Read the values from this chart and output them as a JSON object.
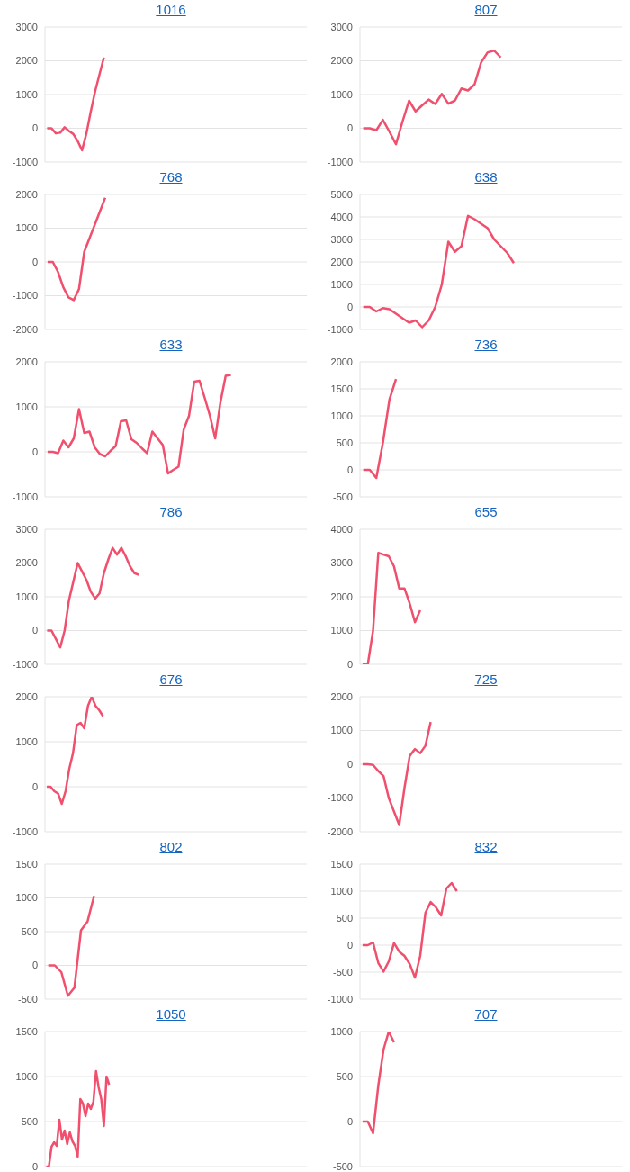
{
  "chart_data": [
    {
      "type": "line",
      "title": "1016",
      "color": "#f0506e",
      "marker": "none",
      "line_style": "solid",
      "grid": "y",
      "tick_labels": "y",
      "ylim": [
        -1000,
        3000
      ],
      "yticks": [
        -1000,
        0,
        1000,
        2000,
        3000
      ],
      "categories": [
        null,
        null,
        null,
        null,
        null,
        null,
        null,
        null,
        null,
        null,
        null,
        null,
        null,
        null,
        null,
        null,
        null,
        null,
        null,
        null,
        null,
        null,
        null,
        null,
        null,
        null,
        null,
        null,
        null,
        null,
        null,
        null,
        null,
        null,
        null,
        null,
        null,
        null,
        null,
        null,
        null,
        null,
        null,
        null,
        null,
        null,
        null,
        null,
        null,
        null,
        null,
        null,
        null,
        null,
        null,
        null,
        null,
        null,
        null,
        null
      ],
      "values": [
        0,
        0,
        -150,
        -130,
        30,
        -80,
        -170,
        -380,
        -650,
        -150,
        500,
        1100,
        1600,
        2100,
        null,
        null,
        null,
        null,
        null,
        null,
        null,
        null,
        null,
        null,
        null,
        null,
        null,
        null,
        null,
        null,
        null,
        null,
        null,
        null,
        null,
        null,
        null,
        null,
        null,
        null,
        null,
        null,
        null,
        null,
        null,
        null,
        null,
        null,
        null,
        null,
        null,
        null,
        null,
        null,
        null,
        null,
        null,
        null,
        null,
        null
      ]
    },
    {
      "type": "line",
      "title": "807",
      "color": "#f0506e",
      "marker": "none",
      "line_style": "solid",
      "grid": "y",
      "tick_labels": "y",
      "ylim": [
        -1000,
        3000
      ],
      "yticks": [
        -1000,
        0,
        1000,
        2000,
        3000
      ],
      "categories": [
        null,
        null,
        null,
        null,
        null,
        null,
        null,
        null,
        null,
        null,
        null,
        null,
        null,
        null,
        null,
        null,
        null,
        null,
        null,
        null,
        null,
        null,
        null,
        null,
        null,
        null,
        null,
        null,
        null,
        null,
        null,
        null,
        null,
        null,
        null,
        null,
        null,
        null,
        null,
        null
      ],
      "values": [
        0,
        0,
        -60,
        250,
        -100,
        -470,
        200,
        820,
        500,
        680,
        850,
        720,
        1020,
        730,
        820,
        1180,
        1120,
        1300,
        1950,
        2250,
        2300,
        2100,
        null,
        null,
        null,
        null,
        null,
        null,
        null,
        null,
        null,
        null,
        null,
        null,
        null,
        null,
        null,
        null,
        null,
        null
      ]
    },
    {
      "type": "line",
      "title": "768",
      "color": "#f0506e",
      "marker": "none",
      "line_style": "solid",
      "grid": "y",
      "tick_labels": "y",
      "ylim": [
        -2000,
        2000
      ],
      "yticks": [
        -2000,
        -1000,
        0,
        1000,
        2000
      ],
      "categories": [
        null,
        null,
        null,
        null,
        null,
        null,
        null,
        null,
        null,
        null,
        null,
        null,
        null,
        null,
        null,
        null,
        null,
        null,
        null,
        null,
        null,
        null,
        null,
        null,
        null,
        null,
        null,
        null,
        null,
        null,
        null,
        null,
        null,
        null,
        null,
        null,
        null,
        null,
        null,
        null,
        null,
        null,
        null,
        null,
        null,
        null,
        null,
        null,
        null,
        null
      ],
      "values": [
        0,
        0,
        -300,
        -750,
        -1050,
        -1130,
        -800,
        300,
        700,
        1100,
        1500,
        1900,
        null,
        null,
        null,
        null,
        null,
        null,
        null,
        null,
        null,
        null,
        null,
        null,
        null,
        null,
        null,
        null,
        null,
        null,
        null,
        null,
        null,
        null,
        null,
        null,
        null,
        null,
        null,
        null,
        null,
        null,
        null,
        null,
        null,
        null,
        null,
        null,
        null,
        null
      ]
    },
    {
      "type": "line",
      "title": "638",
      "color": "#f0506e",
      "marker": "none",
      "line_style": "solid",
      "grid": "y",
      "tick_labels": "y",
      "ylim": [
        -1000,
        5000
      ],
      "yticks": [
        -1000,
        0,
        1000,
        2000,
        3000,
        4000,
        5000
      ],
      "categories": [
        null,
        null,
        null,
        null,
        null,
        null,
        null,
        null,
        null,
        null,
        null,
        null,
        null,
        null,
        null,
        null,
        null,
        null,
        null,
        null,
        null,
        null,
        null,
        null,
        null,
        null,
        null,
        null,
        null,
        null,
        null,
        null,
        null,
        null,
        null,
        null,
        null,
        null,
        null,
        null
      ],
      "values": [
        0,
        0,
        -200,
        -50,
        -100,
        -300,
        -500,
        -700,
        -600,
        -900,
        -600,
        0,
        1000,
        2900,
        2450,
        2700,
        4050,
        3900,
        3700,
        3500,
        3000,
        2700,
        2400,
        1950,
        null,
        null,
        null,
        null,
        null,
        null,
        null,
        null,
        null,
        null,
        null,
        null,
        null,
        null,
        null,
        null
      ]
    },
    {
      "type": "line",
      "title": "633",
      "color": "#f0506e",
      "marker": "none",
      "line_style": "solid",
      "grid": "y",
      "tick_labels": "y",
      "ylim": [
        -1000,
        2000
      ],
      "yticks": [
        -1000,
        0,
        1000,
        2000
      ],
      "categories": [
        null,
        null,
        null,
        null,
        null,
        null,
        null,
        null,
        null,
        null,
        null,
        null,
        null,
        null,
        null,
        null,
        null,
        null,
        null,
        null,
        null,
        null,
        null,
        null,
        null,
        null,
        null,
        null,
        null,
        null,
        null,
        null,
        null,
        null,
        null,
        null,
        null,
        null,
        null,
        null,
        null,
        null,
        null,
        null,
        null,
        null,
        null,
        null,
        null,
        null
      ],
      "values": [
        0,
        0,
        -30,
        250,
        100,
        300,
        950,
        420,
        450,
        100,
        -50,
        -100,
        20,
        130,
        680,
        700,
        280,
        200,
        80,
        -30,
        450,
        300,
        150,
        -480,
        -400,
        -330,
        500,
        800,
        1560,
        1580,
        1200,
        800,
        300,
        1100,
        1690,
        1710,
        null,
        null,
        null,
        null,
        null,
        null,
        null,
        null,
        null,
        null,
        null,
        null,
        null,
        null
      ]
    },
    {
      "type": "line",
      "title": "736",
      "color": "#f0506e",
      "marker": "none",
      "line_style": "solid",
      "grid": "y",
      "tick_labels": "y",
      "ylim": [
        -500,
        2000
      ],
      "yticks": [
        -500,
        0,
        500,
        1000,
        1500,
        2000
      ],
      "categories": [
        null,
        null,
        null,
        null,
        null,
        null,
        null,
        null,
        null,
        null,
        null,
        null,
        null,
        null,
        null,
        null,
        null,
        null,
        null,
        null,
        null,
        null,
        null,
        null,
        null,
        null,
        null,
        null,
        null,
        null,
        null,
        null,
        null,
        null,
        null,
        null,
        null,
        null,
        null,
        null
      ],
      "values": [
        0,
        0,
        -150,
        500,
        1300,
        1680,
        null,
        null,
        null,
        null,
        null,
        null,
        null,
        null,
        null,
        null,
        null,
        null,
        null,
        null,
        null,
        null,
        null,
        null,
        null,
        null,
        null,
        null,
        null,
        null,
        null,
        null,
        null,
        null,
        null,
        null,
        null,
        null,
        null,
        null
      ]
    },
    {
      "type": "line",
      "title": "786",
      "color": "#f0506e",
      "marker": "none",
      "line_style": "solid",
      "grid": "y",
      "tick_labels": "y",
      "ylim": [
        -1000,
        3000
      ],
      "yticks": [
        -1000,
        0,
        1000,
        2000,
        3000
      ],
      "categories": [
        null,
        null,
        null,
        null,
        null,
        null,
        null,
        null,
        null,
        null,
        null,
        null,
        null,
        null,
        null,
        null,
        null,
        null,
        null,
        null,
        null,
        null,
        null,
        null,
        null,
        null,
        null,
        null,
        null,
        null,
        null,
        null,
        null,
        null,
        null,
        null,
        null,
        null,
        null,
        null,
        null,
        null,
        null,
        null,
        null,
        null,
        null,
        null,
        null,
        null,
        null,
        null,
        null,
        null,
        null,
        null,
        null,
        null,
        null,
        null
      ],
      "values": [
        0,
        0,
        -250,
        -500,
        0,
        900,
        1450,
        2000,
        1750,
        1500,
        1150,
        950,
        1100,
        1700,
        2100,
        2450,
        2250,
        2450,
        2200,
        1900,
        1700,
        1650,
        null,
        null,
        null,
        null,
        null,
        null,
        null,
        null,
        null,
        null,
        null,
        null,
        null,
        null,
        null,
        null,
        null,
        null,
        null,
        null,
        null,
        null,
        null,
        null,
        null,
        null,
        null,
        null,
        null,
        null,
        null,
        null,
        null,
        null,
        null,
        null,
        null,
        null
      ]
    },
    {
      "type": "line",
      "title": "655",
      "color": "#f0506e",
      "marker": "none",
      "line_style": "solid",
      "grid": "y",
      "tick_labels": "y",
      "ylim": [
        0,
        4000
      ],
      "yticks": [
        0,
        1000,
        2000,
        3000,
        4000
      ],
      "categories": [
        null,
        null,
        null,
        null,
        null,
        null,
        null,
        null,
        null,
        null,
        null,
        null,
        null,
        null,
        null,
        null,
        null,
        null,
        null,
        null,
        null,
        null,
        null,
        null,
        null,
        null,
        null,
        null,
        null,
        null,
        null,
        null,
        null,
        null,
        null,
        null,
        null,
        null,
        null,
        null,
        null,
        null,
        null,
        null,
        null,
        null,
        null,
        null,
        null,
        null
      ],
      "values": [
        0,
        0,
        1000,
        3300,
        3250,
        3200,
        2900,
        2250,
        2250,
        1800,
        1250,
        1600,
        null,
        null,
        null,
        null,
        null,
        null,
        null,
        null,
        null,
        null,
        null,
        null,
        null,
        null,
        null,
        null,
        null,
        null,
        null,
        null,
        null,
        null,
        null,
        null,
        null,
        null,
        null,
        null,
        null,
        null,
        null,
        null,
        null,
        null,
        null,
        null,
        null,
        null
      ]
    },
    {
      "type": "line",
      "title": "676",
      "color": "#f0506e",
      "marker": "none",
      "line_style": "solid",
      "grid": "y",
      "tick_labels": "y",
      "ylim": [
        -1000,
        2000
      ],
      "yticks": [
        -1000,
        0,
        1000,
        2000
      ],
      "categories": [
        null,
        null,
        null,
        null,
        null,
        null,
        null,
        null,
        null,
        null,
        null,
        null,
        null,
        null,
        null,
        null,
        null,
        null,
        null,
        null,
        null,
        null,
        null,
        null,
        null,
        null,
        null,
        null,
        null,
        null,
        null,
        null,
        null,
        null,
        null,
        null,
        null,
        null,
        null,
        null,
        null,
        null,
        null,
        null,
        null,
        null,
        null,
        null,
        null,
        null,
        null,
        null,
        null,
        null,
        null,
        null,
        null,
        null,
        null,
        null,
        null,
        null,
        null,
        null,
        null,
        null,
        null,
        null,
        null,
        null
      ],
      "values": [
        0,
        0,
        -100,
        -150,
        -380,
        -100,
        400,
        750,
        1370,
        1420,
        1300,
        1800,
        2000,
        1800,
        1700,
        1570,
        null,
        null,
        null,
        null,
        null,
        null,
        null,
        null,
        null,
        null,
        null,
        null,
        null,
        null,
        null,
        null,
        null,
        null,
        null,
        null,
        null,
        null,
        null,
        null,
        null,
        null,
        null,
        null,
        null,
        null,
        null,
        null,
        null,
        null,
        null,
        null,
        null,
        null,
        null,
        null,
        null,
        null,
        null,
        null,
        null,
        null,
        null,
        null,
        null,
        null,
        null,
        null,
        null,
        null
      ]
    },
    {
      "type": "line",
      "title": "725",
      "color": "#f0506e",
      "marker": "none",
      "line_style": "solid",
      "grid": "y",
      "tick_labels": "y",
      "ylim": [
        -2000,
        2000
      ],
      "yticks": [
        -2000,
        -1000,
        0,
        1000,
        2000
      ],
      "categories": [
        null,
        null,
        null,
        null,
        null,
        null,
        null,
        null,
        null,
        null,
        null,
        null,
        null,
        null,
        null,
        null,
        null,
        null,
        null,
        null,
        null,
        null,
        null,
        null,
        null,
        null,
        null,
        null,
        null,
        null,
        null,
        null,
        null,
        null,
        null,
        null,
        null,
        null,
        null,
        null,
        null,
        null,
        null,
        null,
        null,
        null,
        null,
        null,
        null,
        null
      ],
      "values": [
        0,
        0,
        -20,
        -200,
        -350,
        -1000,
        -1400,
        -1800,
        -700,
        250,
        450,
        330,
        550,
        1250,
        null,
        null,
        null,
        null,
        null,
        null,
        null,
        null,
        null,
        null,
        null,
        null,
        null,
        null,
        null,
        null,
        null,
        null,
        null,
        null,
        null,
        null,
        null,
        null,
        null,
        null,
        null,
        null,
        null,
        null,
        null,
        null,
        null,
        null,
        null,
        null
      ]
    },
    {
      "type": "line",
      "title": "802",
      "color": "#f0506e",
      "marker": "none",
      "line_style": "solid",
      "grid": "y",
      "tick_labels": "y",
      "ylim": [
        -500,
        1500
      ],
      "yticks": [
        -500,
        0,
        500,
        1000,
        1500
      ],
      "categories": [
        null,
        null,
        null,
        null,
        null,
        null,
        null,
        null,
        null,
        null,
        null,
        null,
        null,
        null,
        null,
        null,
        null,
        null,
        null,
        null,
        null,
        null,
        null,
        null,
        null,
        null,
        null,
        null,
        null,
        null,
        null,
        null,
        null,
        null,
        null,
        null,
        null,
        null,
        null,
        null
      ],
      "values": [
        0,
        0,
        -100,
        -450,
        -330,
        520,
        650,
        1030,
        null,
        null,
        null,
        null,
        null,
        null,
        null,
        null,
        null,
        null,
        null,
        null,
        null,
        null,
        null,
        null,
        null,
        null,
        null,
        null,
        null,
        null,
        null,
        null,
        null,
        null,
        null,
        null,
        null,
        null,
        null,
        null
      ]
    },
    {
      "type": "line",
      "title": "832",
      "color": "#f0506e",
      "marker": "none",
      "line_style": "solid",
      "grid": "y",
      "tick_labels": "y",
      "ylim": [
        -1000,
        1500
      ],
      "yticks": [
        -1000,
        -500,
        0,
        500,
        1000,
        1500
      ],
      "categories": [
        null,
        null,
        null,
        null,
        null,
        null,
        null,
        null,
        null,
        null,
        null,
        null,
        null,
        null,
        null,
        null,
        null,
        null,
        null,
        null,
        null,
        null,
        null,
        null,
        null,
        null,
        null,
        null,
        null,
        null,
        null,
        null,
        null,
        null,
        null,
        null,
        null,
        null,
        null,
        null,
        null,
        null,
        null,
        null,
        null,
        null,
        null,
        null,
        null,
        null
      ],
      "values": [
        0,
        0,
        50,
        -330,
        -490,
        -300,
        40,
        -120,
        -200,
        -350,
        -600,
        -200,
        600,
        800,
        700,
        550,
        1050,
        1150,
        1000,
        null,
        null,
        null,
        null,
        null,
        null,
        null,
        null,
        null,
        null,
        null,
        null,
        null,
        null,
        null,
        null,
        null,
        null,
        null,
        null,
        null,
        null,
        null,
        null,
        null,
        null,
        null,
        null,
        null,
        null,
        null
      ]
    },
    {
      "type": "line",
      "title": "1050",
      "color": "#f0506e",
      "marker": "none",
      "line_style": "solid",
      "grid": "y",
      "tick_labels": "y",
      "ylim": [
        0,
        1500
      ],
      "yticks": [
        0,
        500,
        1000,
        1500
      ],
      "categories": [
        null,
        null,
        null,
        null,
        null,
        null,
        null,
        null,
        null,
        null,
        null,
        null,
        null,
        null,
        null,
        null,
        null,
        null,
        null,
        null,
        null,
        null,
        null,
        null,
        null,
        null,
        null,
        null,
        null,
        null,
        null,
        null,
        null,
        null,
        null,
        null,
        null,
        null,
        null,
        null,
        null,
        null,
        null,
        null,
        null,
        null,
        null,
        null,
        null,
        null,
        null,
        null,
        null,
        null,
        null,
        null,
        null,
        null,
        null,
        null,
        null,
        null,
        null,
        null,
        null,
        null,
        null,
        null,
        null,
        null,
        null,
        null,
        null,
        null,
        null,
        null,
        null,
        null,
        null,
        null,
        null,
        null,
        null,
        null,
        null,
        null,
        null,
        null,
        null,
        null,
        null,
        null,
        null,
        null,
        null,
        null,
        null,
        null,
        null,
        null
      ],
      "values": [
        0,
        0,
        220,
        270,
        230,
        520,
        300,
        400,
        250,
        380,
        280,
        230,
        110,
        750,
        700,
        560,
        700,
        640,
        720,
        1060,
        880,
        750,
        450,
        1000,
        910,
        null,
        null,
        null,
        null,
        null,
        null,
        null,
        null,
        null,
        null,
        null,
        null,
        null,
        null,
        null,
        null,
        null,
        null,
        null,
        null,
        null,
        null,
        null,
        null,
        null,
        null,
        null,
        null,
        null,
        null,
        null,
        null,
        null,
        null,
        null,
        null,
        null,
        null,
        null,
        null,
        null,
        null,
        null,
        null,
        null,
        null,
        null,
        null,
        null,
        null,
        null,
        null,
        null,
        null,
        null,
        null,
        null,
        null,
        null,
        null,
        null,
        null,
        null,
        null,
        null,
        null,
        null,
        null,
        null,
        null,
        null,
        null,
        null,
        null,
        null
      ]
    },
    {
      "type": "line",
      "title": "707",
      "color": "#f0506e",
      "marker": "none",
      "line_style": "solid",
      "grid": "y",
      "tick_labels": "y",
      "ylim": [
        -500,
        1000
      ],
      "yticks": [
        -500,
        0,
        500,
        1000
      ],
      "categories": [
        null,
        null,
        null,
        null,
        null,
        null,
        null,
        null,
        null,
        null,
        null,
        null,
        null,
        null,
        null,
        null,
        null,
        null,
        null,
        null,
        null,
        null,
        null,
        null,
        null,
        null,
        null,
        null,
        null,
        null,
        null,
        null,
        null,
        null,
        null,
        null,
        null,
        null,
        null,
        null,
        null,
        null,
        null,
        null,
        null,
        null,
        null,
        null,
        null,
        null
      ],
      "values": [
        0,
        0,
        -130,
        400,
        800,
        1000,
        880,
        null,
        null,
        null,
        null,
        null,
        null,
        null,
        null,
        null,
        null,
        null,
        null,
        null,
        null,
        null,
        null,
        null,
        null,
        null,
        null,
        null,
        null,
        null,
        null,
        null,
        null,
        null,
        null,
        null,
        null,
        null,
        null,
        null,
        null,
        null,
        null,
        null,
        null,
        null,
        null,
        null,
        null,
        null
      ]
    }
  ]
}
